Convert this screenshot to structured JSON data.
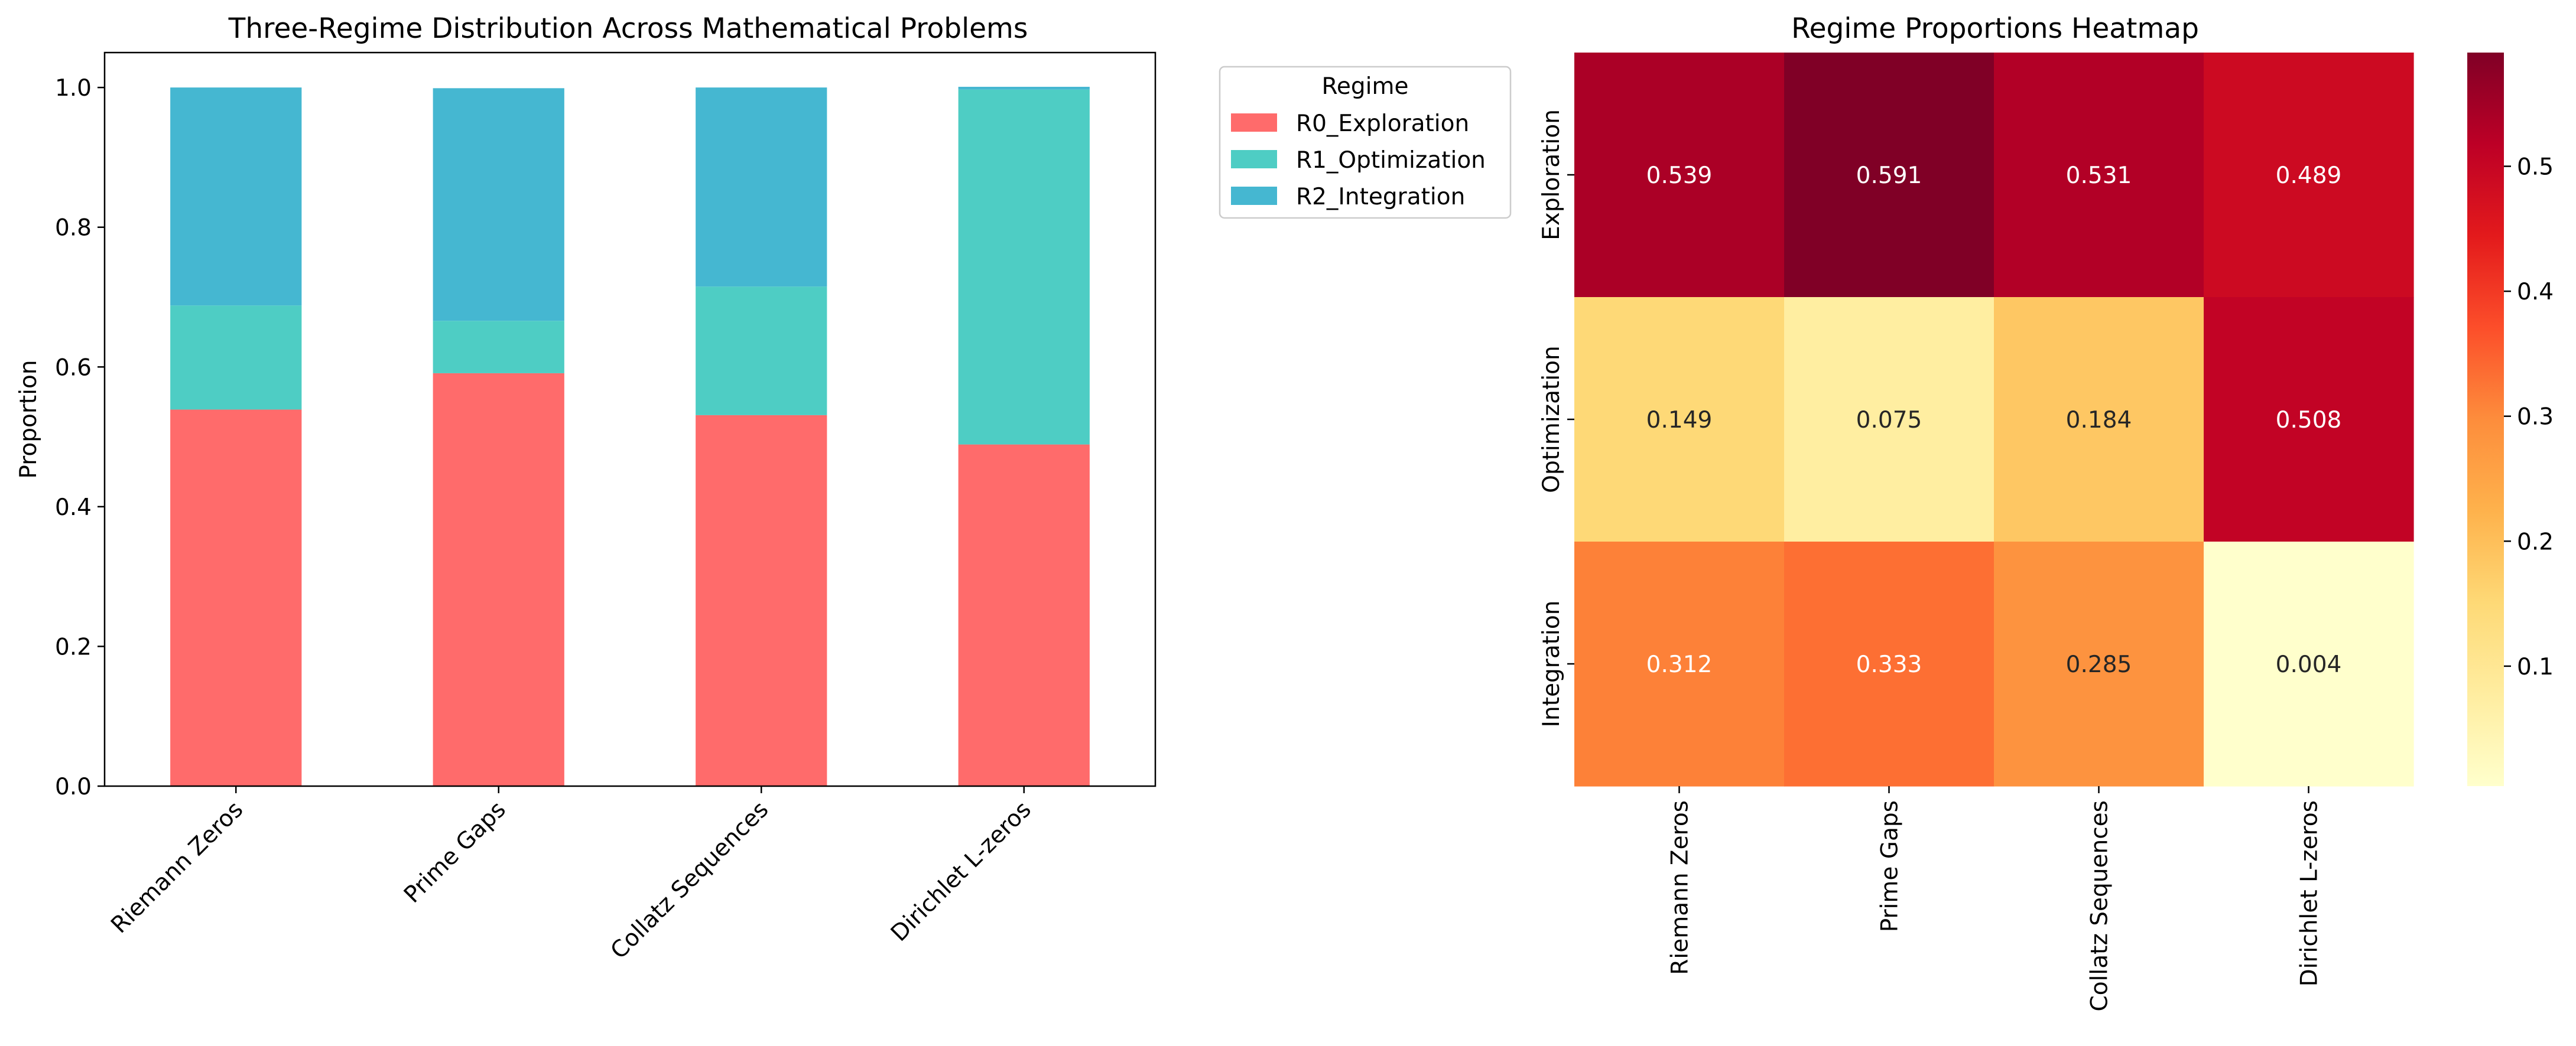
{
  "chart_data": [
    {
      "type": "bar",
      "stacked": true,
      "title": "Three-Regime Distribution Across Mathematical Problems",
      "xlabel": "",
      "ylabel": "Proportion",
      "categories": [
        "Riemann Zeros",
        "Prime Gaps",
        "Collatz Sequences",
        "Dirichlet L-zeros"
      ],
      "series": [
        {
          "name": "R0_Exploration",
          "color": "#ff6b6b",
          "values": [
            0.539,
            0.591,
            0.531,
            0.489
          ]
        },
        {
          "name": "R1_Optimization",
          "color": "#4ecdc4",
          "values": [
            0.149,
            0.075,
            0.184,
            0.508
          ]
        },
        {
          "name": "R2_Integration",
          "color": "#45b7d1",
          "values": [
            0.312,
            0.333,
            0.285,
            0.004
          ]
        }
      ],
      "ylim": [
        0,
        1.05
      ],
      "yticks": [
        "0.0",
        "0.2",
        "0.4",
        "0.6",
        "0.8",
        "1.0"
      ],
      "legend": {
        "title": "Regime",
        "placement": "outside-right"
      },
      "grid": false
    },
    {
      "type": "heatmap",
      "title": "Regime Proportions Heatmap",
      "colormap": "YlOrRd",
      "rows": [
        "Exploration",
        "Optimization",
        "Integration"
      ],
      "columns": [
        "Riemann Zeros",
        "Prime Gaps",
        "Collatz Sequences",
        "Dirichlet L-zeros"
      ],
      "values": [
        [
          0.539,
          0.591,
          0.531,
          0.489
        ],
        [
          0.149,
          0.075,
          0.184,
          0.508
        ],
        [
          0.312,
          0.333,
          0.285,
          0.004
        ]
      ],
      "labels": [
        [
          "0.539",
          "0.591",
          "0.531",
          "0.489"
        ],
        [
          "0.149",
          "0.075",
          "0.184",
          "0.508"
        ],
        [
          "0.312",
          "0.333",
          "0.285",
          "0.004"
        ]
      ],
      "colorbar_ticks": [
        "0.1",
        "0.2",
        "0.3",
        "0.4",
        "0.5"
      ],
      "vmin": 0.004,
      "vmax": 0.591
    }
  ]
}
